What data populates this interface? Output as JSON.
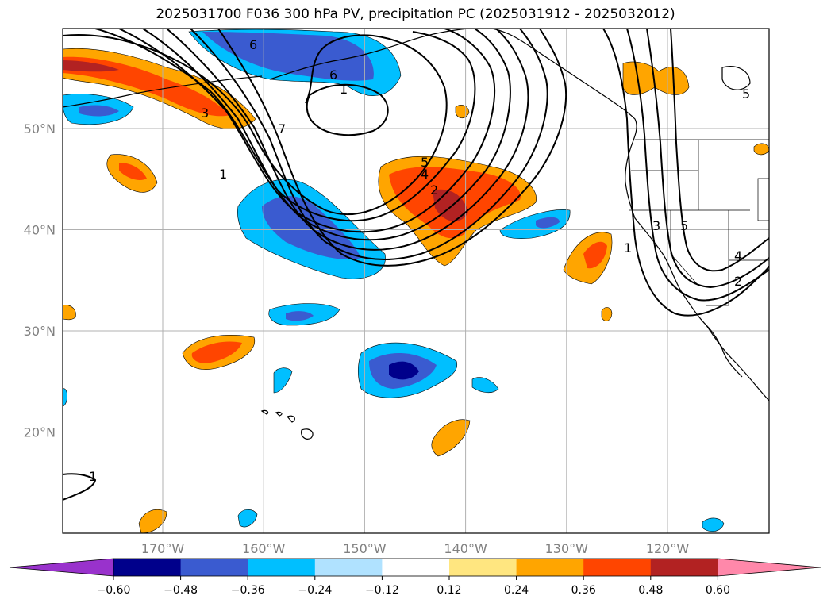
{
  "title": "2025031700 F036 300 hPa PV, precipitation PC (2025031912 - 2025032012)",
  "lat_labels": [
    {
      "lat": 50,
      "text": "50°N"
    },
    {
      "lat": 40,
      "text": "40°N"
    },
    {
      "lat": 30,
      "text": "30°N"
    },
    {
      "lat": 20,
      "text": "20°N"
    }
  ],
  "lon_labels": [
    {
      "lon": -170,
      "text": "170°W"
    },
    {
      "lon": -160,
      "text": "160°W"
    },
    {
      "lon": -150,
      "text": "150°W"
    },
    {
      "lon": -140,
      "text": "140°W"
    },
    {
      "lon": -130,
      "text": "130°W"
    },
    {
      "lon": -120,
      "text": "120°W"
    }
  ],
  "colorbar": {
    "ticks": [
      "−0.60",
      "−0.48",
      "−0.36",
      "−0.24",
      "−0.12",
      "0.12",
      "0.24",
      "0.36",
      "0.48",
      "0.60"
    ],
    "colors": [
      "#9932cc",
      "#00008b",
      "#3a5bd0",
      "#00bfff",
      "#b0e2ff",
      "#ffffff",
      "#ffe680",
      "#ffa500",
      "#ff4500",
      "#b22222",
      "#ff88aa"
    ]
  },
  "contour_labels": [
    "6",
    "6",
    "1",
    "7",
    "3",
    "1",
    "5",
    "4",
    "2",
    "3",
    "5",
    "1",
    "4",
    "2",
    "5",
    "1"
  ],
  "anomaly_colors": {
    "strong_positive": "#b22222",
    "positive": "#ff4500",
    "moderate_positive": "#ffa500",
    "weak_positive": "#ffe680",
    "weak_negative": "#b0e2ff",
    "moderate_negative": "#00bfff",
    "negative": "#3a5bd0",
    "strong_negative": "#00008b"
  }
}
